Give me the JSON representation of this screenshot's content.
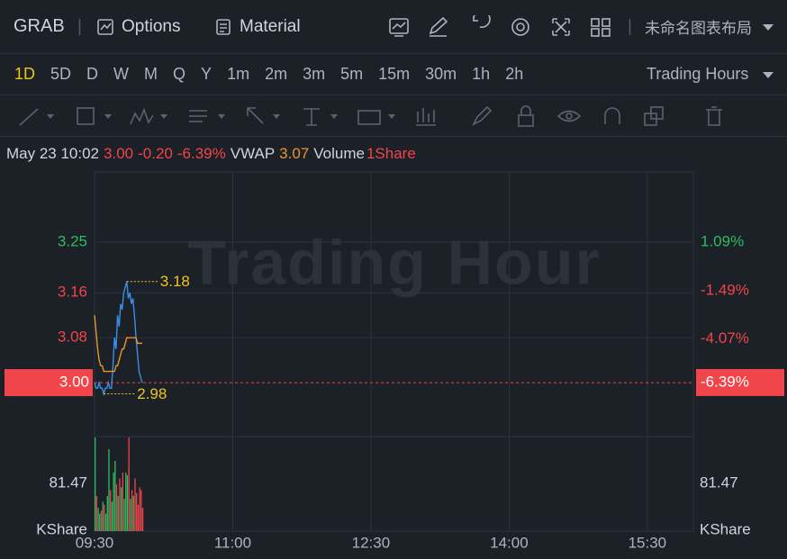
{
  "header": {
    "symbol": "GRAB",
    "buttons": [
      "Options",
      "Material"
    ],
    "layout_name": "未命名图表布局"
  },
  "intervals": {
    "items": [
      "1D",
      "5D",
      "D",
      "W",
      "M",
      "Q",
      "Y",
      "1m",
      "2m",
      "3m",
      "5m",
      "15m",
      "30m",
      "1h",
      "2h"
    ],
    "active_index": 0,
    "session": "Trading Hours"
  },
  "info": {
    "datetime": "May 23 10:02",
    "price": "3.00",
    "change": "-0.20",
    "change_pct": "-6.39%",
    "vwap_label": "VWAP",
    "vwap": "3.07",
    "volume_label": "Volume",
    "volume": "1Share"
  },
  "chart": {
    "watermark": "Trading Hour",
    "xlim": [
      "09:30",
      "16:00"
    ],
    "xticks": [
      "09:30",
      "11:00",
      "12:30",
      "14:00",
      "15:30"
    ],
    "ylim": [
      2.904,
      3.375
    ],
    "yticks": [
      {
        "value": 3.25,
        "label": "3.25"
      },
      {
        "value": 3.16,
        "label": "3.16"
      },
      {
        "value": 3.08,
        "label": "3.08"
      }
    ],
    "y2lim": [
      -9.27,
      4.83
    ],
    "y2ticks": [
      {
        "value": 1.09,
        "label": "1.09%"
      },
      {
        "value": -1.49,
        "label": "-1.49%"
      },
      {
        "value": -4.07,
        "label": "-4.07%"
      }
    ],
    "last": {
      "value": 3.0,
      "label": "3.00"
    },
    "last_pct": {
      "value": -6.39,
      "label": "-6.39%"
    },
    "high": {
      "x": "09:51",
      "value": 3.18,
      "label": "3.18"
    },
    "low": {
      "x": "09:36",
      "value": 2.98,
      "label": "2.98"
    },
    "x": [
      "09:30",
      "09:31",
      "09:32",
      "09:33",
      "09:34",
      "09:35",
      "09:36",
      "09:37",
      "09:38",
      "09:39",
      "09:40",
      "09:41",
      "09:42",
      "09:43",
      "09:44",
      "09:45",
      "09:46",
      "09:47",
      "09:48",
      "09:49",
      "09:50",
      "09:51",
      "09:52",
      "09:53",
      "09:54",
      "09:55",
      "09:56",
      "09:57",
      "09:58",
      "09:59",
      "10:00",
      "10:01"
    ],
    "series": [
      {
        "color": "#3a8ee6",
        "values": [
          3.0,
          2.99,
          2.99,
          3.0,
          2.99,
          2.99,
          2.98,
          2.99,
          2.99,
          3.0,
          2.99,
          2.99,
          3.03,
          3.08,
          3.06,
          3.12,
          3.1,
          3.14,
          3.13,
          3.16,
          3.17,
          3.18,
          3.15,
          3.16,
          3.14,
          3.15,
          3.12,
          3.08,
          3.05,
          3.02,
          3.01,
          3.0
        ]
      },
      {
        "color": "#e8952f",
        "values": [
          3.12,
          3.09,
          3.06,
          3.04,
          3.03,
          3.03,
          3.02,
          3.02,
          3.02,
          3.02,
          3.02,
          3.02,
          3.02,
          3.02,
          3.03,
          3.03,
          3.04,
          3.05,
          3.06,
          3.06,
          3.07,
          3.08,
          3.08,
          3.08,
          3.08,
          3.08,
          3.08,
          3.08,
          3.07,
          3.07,
          3.07,
          3.07
        ]
      }
    ],
    "volume": {
      "values": [
        160,
        60,
        40,
        30,
        35,
        50,
        45,
        30,
        60,
        140,
        70,
        50,
        100,
        120,
        80,
        60,
        90,
        75,
        100,
        55,
        100,
        95,
        160,
        55,
        70,
        60,
        90,
        65,
        45,
        75,
        70,
        40
      ],
      "ylim": [
        0,
        161.5
      ],
      "yticks": [
        {
          "value": 81.47,
          "label": "81.47"
        }
      ],
      "unit": "KShare",
      "up_color": "#2ebd63",
      "down_color": "#f0454a"
    }
  }
}
